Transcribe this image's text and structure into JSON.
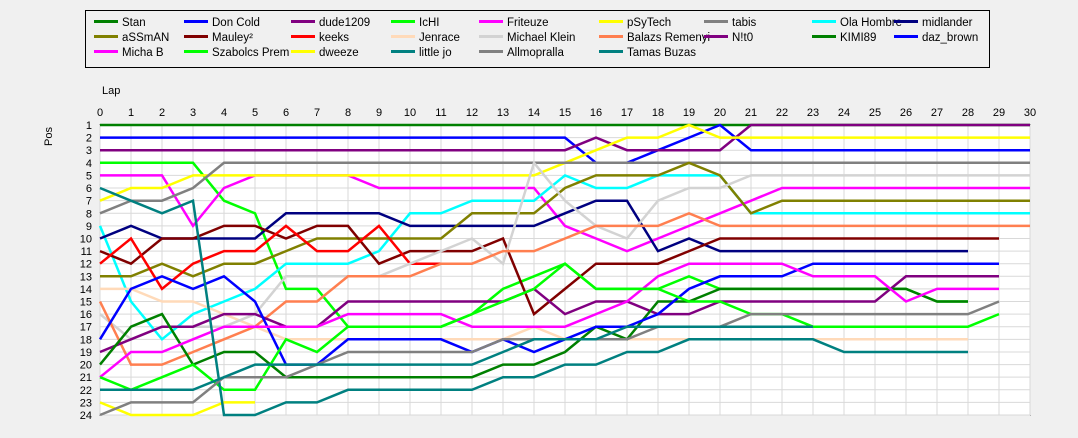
{
  "chart_data": {
    "type": "line",
    "title": "",
    "xlabel": "Lap",
    "ylabel": "Pos",
    "xlim": [
      0,
      30
    ],
    "ylim": [
      1,
      24
    ],
    "y_inverted": true,
    "grid": true,
    "legend_position": "top",
    "x": [
      0,
      1,
      2,
      3,
      4,
      5,
      6,
      7,
      8,
      9,
      10,
      11,
      12,
      13,
      14,
      15,
      16,
      17,
      18,
      19,
      20,
      21,
      22,
      23,
      24,
      25,
      26,
      27,
      28,
      29,
      30
    ],
    "x_ticks": [
      "0",
      "1",
      "2",
      "3",
      "4",
      "5",
      "6",
      "7",
      "8",
      "9",
      "10",
      "11",
      "12",
      "13",
      "14",
      "15",
      "16",
      "17",
      "18",
      "19",
      "20",
      "21",
      "22",
      "23",
      "24",
      "25",
      "26",
      "27",
      "28",
      "29",
      "30"
    ],
    "y_ticks": [
      "1",
      "2",
      "3",
      "4",
      "5",
      "6",
      "7",
      "8",
      "9",
      "10",
      "11",
      "12",
      "13",
      "14",
      "15",
      "16",
      "17",
      "18",
      "19",
      "20",
      "21",
      "22",
      "23",
      "24"
    ],
    "series": [
      {
        "name": "Stan",
        "color": "#008000",
        "values": [
          1,
          1,
          1,
          1,
          1,
          1,
          1,
          1,
          1,
          1,
          1,
          1,
          1,
          1,
          1,
          1,
          1,
          1,
          1,
          1,
          1,
          1,
          1,
          1,
          1,
          1,
          1,
          1,
          1,
          1,
          1
        ]
      },
      {
        "name": "Don Cold",
        "color": "#0000ff",
        "values": [
          2,
          2,
          2,
          2,
          2,
          2,
          2,
          2,
          2,
          2,
          2,
          2,
          2,
          2,
          2,
          2,
          4,
          4,
          3,
          2,
          1,
          3,
          3,
          3,
          3,
          3,
          3,
          3,
          3,
          3,
          3
        ]
      },
      {
        "name": "dude1209",
        "color": "#800080",
        "values": [
          3,
          3,
          3,
          3,
          3,
          3,
          3,
          3,
          3,
          3,
          3,
          3,
          3,
          3,
          3,
          3,
          2,
          3,
          3,
          3,
          3,
          1,
          1,
          1,
          1,
          1,
          1,
          1,
          1,
          1,
          1
        ]
      },
      {
        "name": "IcHI",
        "color": "#00ff00",
        "values": [
          4,
          4,
          4,
          4,
          7,
          8,
          14,
          14,
          17,
          17,
          17,
          17,
          16,
          14,
          13,
          12,
          14,
          14,
          14,
          13,
          14,
          14,
          14,
          14,
          14,
          14,
          14,
          15,
          15,
          null,
          null
        ]
      },
      {
        "name": "Friteuze",
        "color": "#ff00ff",
        "values": [
          5,
          5,
          5,
          9,
          6,
          5,
          5,
          5,
          5,
          6,
          6,
          6,
          6,
          6,
          6,
          9,
          10,
          11,
          10,
          9,
          8,
          7,
          6,
          6,
          6,
          6,
          6,
          6,
          6,
          6,
          6
        ]
      },
      {
        "name": "pSyTech",
        "color": "#ffff00",
        "values": [
          7,
          6,
          6,
          5,
          5,
          5,
          5,
          5,
          5,
          5,
          5,
          5,
          5,
          5,
          5,
          4,
          3,
          2,
          2,
          1,
          2,
          2,
          2,
          2,
          2,
          2,
          2,
          2,
          2,
          2,
          2
        ]
      },
      {
        "name": "tabis",
        "color": "#808080",
        "values": [
          8,
          7,
          7,
          6,
          4,
          4,
          4,
          4,
          4,
          4,
          4,
          4,
          4,
          4,
          4,
          4,
          4,
          4,
          4,
          4,
          4,
          4,
          4,
          4,
          4,
          4,
          4,
          4,
          4,
          4,
          4
        ]
      },
      {
        "name": "Ola Hombre",
        "color": "#00ffff",
        "values": [
          9,
          15,
          18,
          16,
          15,
          14,
          12,
          12,
          12,
          11,
          8,
          8,
          7,
          7,
          7,
          5,
          6,
          6,
          5,
          5,
          5,
          8,
          8,
          8,
          8,
          8,
          8,
          8,
          8,
          8,
          8
        ]
      },
      {
        "name": "midlander",
        "color": "#000080",
        "values": [
          10,
          9,
          10,
          10,
          10,
          10,
          8,
          8,
          8,
          8,
          9,
          9,
          9,
          9,
          9,
          8,
          7,
          7,
          11,
          10,
          11,
          11,
          11,
          11,
          11,
          11,
          11,
          11,
          11,
          null,
          null
        ]
      },
      {
        "name": "aSSmAN",
        "color": "#808000",
        "values": [
          13,
          13,
          12,
          13,
          12,
          12,
          11,
          10,
          10,
          10,
          10,
          10,
          8,
          8,
          8,
          6,
          5,
          5,
          5,
          4,
          5,
          8,
          7,
          7,
          7,
          7,
          7,
          7,
          7,
          7,
          7
        ]
      },
      {
        "name": "Mauley²",
        "color": "#800000",
        "values": [
          11,
          12,
          10,
          10,
          9,
          9,
          10,
          9,
          9,
          12,
          11,
          11,
          11,
          10,
          16,
          14,
          12,
          12,
          12,
          11,
          10,
          10,
          10,
          10,
          10,
          10,
          10,
          10,
          10,
          10,
          null
        ]
      },
      {
        "name": "keeks",
        "color": "#ff0000",
        "values": [
          12,
          10,
          14,
          12,
          11,
          11,
          9,
          11,
          11,
          9,
          12,
          12,
          null,
          null,
          null,
          null,
          null,
          null,
          null,
          null,
          null,
          null,
          null,
          null,
          null,
          null,
          null,
          null,
          null,
          null,
          null
        ]
      },
      {
        "name": "Jenrace",
        "color": "#ffdab9",
        "values": [
          14,
          14,
          15,
          15,
          16,
          17,
          18,
          18,
          18,
          18,
          18,
          18,
          18,
          18,
          17,
          18,
          18,
          18,
          18,
          18,
          18,
          18,
          18,
          18,
          18,
          18,
          18,
          18,
          18,
          null,
          null
        ]
      },
      {
        "name": "Michael Klein",
        "color": "#d3d3d3",
        "values": [
          16,
          18,
          17,
          17,
          17,
          16,
          13,
          13,
          13,
          13,
          12,
          11,
          10,
          12,
          4,
          7,
          9,
          10,
          7,
          6,
          6,
          5,
          5,
          5,
          5,
          5,
          5,
          5,
          5,
          5,
          5
        ]
      },
      {
        "name": "Balazs Remenyi",
        "color": "#ff7f50",
        "values": [
          15,
          20,
          20,
          19,
          18,
          17,
          15,
          15,
          13,
          13,
          13,
          12,
          12,
          11,
          11,
          10,
          9,
          9,
          9,
          8,
          9,
          9,
          9,
          9,
          9,
          9,
          9,
          9,
          9,
          9,
          9
        ]
      },
      {
        "name": "N!t0",
        "color": "#800080",
        "values": [
          19,
          18,
          17,
          17,
          16,
          16,
          17,
          17,
          15,
          15,
          15,
          15,
          15,
          15,
          14,
          16,
          15,
          15,
          16,
          16,
          15,
          15,
          15,
          15,
          15,
          15,
          13,
          13,
          13,
          13,
          null
        ]
      },
      {
        "name": "KIMI89",
        "color": "#008000",
        "values": [
          20,
          17,
          16,
          20,
          19,
          19,
          21,
          21,
          21,
          21,
          21,
          21,
          21,
          20,
          20,
          19,
          17,
          18,
          15,
          15,
          14,
          14,
          14,
          14,
          14,
          14,
          14,
          15,
          15,
          null,
          null
        ]
      },
      {
        "name": "daz_brown",
        "color": "#0000ff",
        "values": [
          18,
          14,
          13,
          14,
          13,
          15,
          20,
          20,
          18,
          18,
          18,
          18,
          19,
          18,
          19,
          18,
          17,
          17,
          16,
          14,
          13,
          13,
          13,
          12,
          12,
          12,
          12,
          12,
          12,
          12,
          null
        ]
      },
      {
        "name": "Micha B",
        "color": "#ff00ff",
        "values": [
          21,
          19,
          19,
          18,
          17,
          17,
          17,
          17,
          16,
          16,
          16,
          16,
          17,
          17,
          17,
          17,
          16,
          15,
          13,
          12,
          12,
          12,
          12,
          13,
          13,
          13,
          15,
          14,
          14,
          14,
          null
        ]
      },
      {
        "name": "Szabolcs Prem",
        "color": "#00ff00",
        "values": [
          21,
          22,
          21,
          20,
          22,
          22,
          18,
          19,
          17,
          17,
          17,
          17,
          16,
          15,
          14,
          12,
          14,
          14,
          14,
          15,
          15,
          16,
          16,
          17,
          17,
          17,
          17,
          17,
          17,
          16,
          null
        ]
      },
      {
        "name": "dweeze",
        "color": "#ffff00",
        "values": [
          23,
          24,
          24,
          24,
          23,
          23,
          null,
          null,
          null,
          null,
          null,
          null,
          null,
          null,
          null,
          null,
          null,
          null,
          null,
          null,
          null,
          null,
          null,
          null,
          null,
          null,
          null,
          null,
          null,
          null,
          null
        ]
      },
      {
        "name": "little jo",
        "color": "#008080",
        "values": [
          6,
          7,
          8,
          7,
          24,
          24,
          23,
          23,
          22,
          22,
          22,
          22,
          22,
          21,
          21,
          20,
          20,
          19,
          19,
          18,
          18,
          18,
          18,
          18,
          19,
          19,
          19,
          19,
          19,
          null,
          null
        ]
      },
      {
        "name": "Allmopralla",
        "color": "#808080",
        "values": [
          24,
          23,
          23,
          23,
          21,
          21,
          21,
          20,
          19,
          19,
          19,
          19,
          19,
          18,
          18,
          18,
          18,
          18,
          17,
          17,
          17,
          16,
          16,
          16,
          16,
          16,
          16,
          16,
          16,
          15,
          null
        ]
      },
      {
        "name": "Tamas Buzas",
        "color": "#008080",
        "values": [
          22,
          22,
          22,
          22,
          21,
          20,
          20,
          20,
          20,
          20,
          20,
          20,
          20,
          19,
          18,
          18,
          18,
          17,
          17,
          17,
          17,
          17,
          17,
          17,
          null,
          null,
          null,
          null,
          null,
          null,
          null
        ]
      }
    ]
  }
}
